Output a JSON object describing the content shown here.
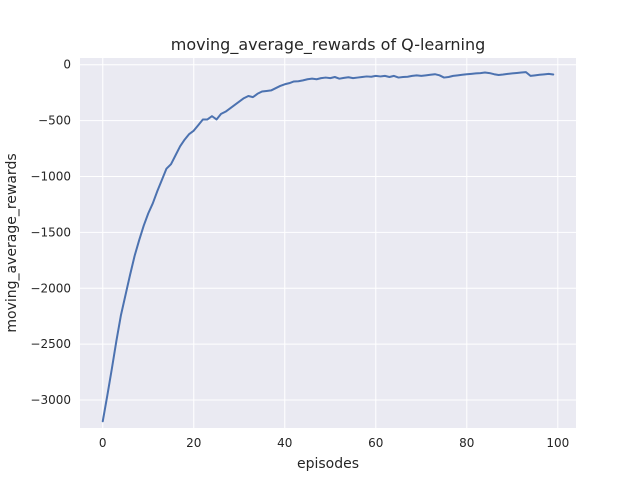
{
  "chart_data": {
    "type": "line",
    "title": "moving_average_rewards of Q-learning",
    "xlabel": "episodes",
    "ylabel": "moving_average_rewards",
    "xlim": [
      -5,
      104
    ],
    "ylim": [
      -3250,
      60
    ],
    "x_ticks": [
      0,
      20,
      40,
      60,
      80,
      100
    ],
    "x_tick_labels": [
      "0",
      "20",
      "40",
      "60",
      "80",
      "100"
    ],
    "y_ticks": [
      0,
      -500,
      -1000,
      -1500,
      -2000,
      -2500,
      -3000
    ],
    "y_tick_labels": [
      "0",
      "−500",
      "−1000",
      "−1500",
      "−2000",
      "−2500",
      "−3000"
    ],
    "grid": true,
    "colors": {
      "background": "#eaeaf2",
      "grid": "#ffffff",
      "line": "#4c72b0"
    },
    "series": [
      {
        "x": [
          0,
          1,
          2,
          3,
          4,
          5,
          6,
          7,
          8,
          9,
          10,
          11,
          12,
          13,
          14,
          15,
          16,
          17,
          18,
          19,
          20,
          21,
          22,
          23,
          24,
          25,
          26,
          27,
          28,
          29,
          30,
          31,
          32,
          33,
          34,
          35,
          36,
          37,
          38,
          39,
          40,
          41,
          42,
          43,
          44,
          45,
          46,
          47,
          48,
          49,
          50,
          51,
          52,
          53,
          54,
          55,
          56,
          57,
          58,
          59,
          60,
          61,
          62,
          63,
          64,
          65,
          66,
          67,
          68,
          69,
          70,
          71,
          72,
          73,
          74,
          75,
          76,
          77,
          78,
          79,
          80,
          81,
          82,
          83,
          84,
          85,
          86,
          87,
          88,
          89,
          90,
          91,
          92,
          93,
          94,
          95,
          96,
          97,
          98,
          99
        ],
        "y": [
          -3190,
          -2960,
          -2720,
          -2470,
          -2240,
          -2060,
          -1880,
          -1710,
          -1570,
          -1440,
          -1330,
          -1240,
          -1130,
          -1030,
          -930,
          -890,
          -810,
          -730,
          -670,
          -620,
          -590,
          -540,
          -490,
          -490,
          -460,
          -490,
          -440,
          -420,
          -390,
          -360,
          -330,
          -300,
          -280,
          -290,
          -260,
          -240,
          -235,
          -230,
          -210,
          -190,
          -175,
          -165,
          -150,
          -148,
          -140,
          -130,
          -125,
          -130,
          -120,
          -115,
          -120,
          -110,
          -125,
          -118,
          -112,
          -120,
          -115,
          -110,
          -105,
          -108,
          -100,
          -105,
          -100,
          -110,
          -100,
          -115,
          -110,
          -108,
          -100,
          -95,
          -100,
          -95,
          -90,
          -85,
          -95,
          -115,
          -110,
          -100,
          -95,
          -90,
          -85,
          -82,
          -78,
          -75,
          -70,
          -75,
          -85,
          -92,
          -88,
          -82,
          -78,
          -74,
          -70,
          -66,
          -100,
          -95,
          -90,
          -86,
          -82,
          -88
        ]
      }
    ]
  }
}
